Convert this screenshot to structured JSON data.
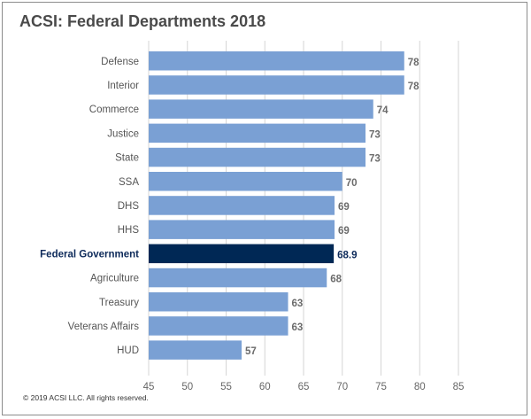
{
  "chart_data": {
    "type": "bar",
    "orientation": "horizontal",
    "title": "ACSI: Federal Departments 2018",
    "categories": [
      "Defense",
      "Interior",
      "Commerce",
      "Justice",
      "State",
      "SSA",
      "DHS",
      "HHS",
      "Federal Government",
      "Agriculture",
      "Treasury",
      "Veterans Affairs",
      "HUD"
    ],
    "values": [
      78,
      78,
      74,
      73,
      73,
      70,
      69,
      69,
      68.9,
      68,
      63,
      63,
      57
    ],
    "value_labels": [
      "78",
      "78",
      "74",
      "73",
      "73",
      "70",
      "69",
      "69",
      "68.9",
      "68",
      "63",
      "63",
      "57"
    ],
    "highlight_category": "Federal Government",
    "xlim": [
      45,
      85
    ],
    "xticks": [
      45,
      50,
      55,
      60,
      65,
      70,
      75,
      80,
      85
    ],
    "xlabel": "",
    "ylabel": "",
    "grid": true,
    "bar_color": "#7aa0d4",
    "highlight_color": "#002855"
  },
  "footer": {
    "copyright": "© 2019 ACSI LLC. All rights reserved."
  }
}
